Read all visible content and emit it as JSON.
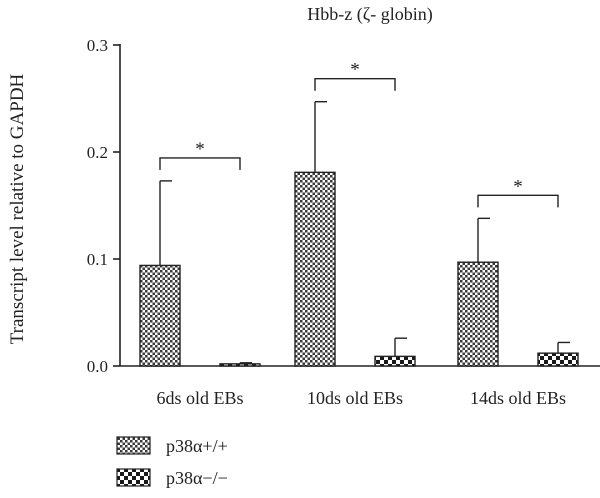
{
  "chart_data": {
    "type": "bar",
    "title": "Hbb-z (ζ- globin)",
    "ylabel": "Transcript level relative to GAPDH",
    "xlabel": "",
    "ylim": [
      0,
      0.3
    ],
    "yticks": [
      "0.0",
      "0.1",
      "0.2",
      "0.3"
    ],
    "categories": [
      "6ds old EBs",
      "10ds old EBs",
      "14ds old EBs"
    ],
    "series": [
      {
        "name": "p38α+/+",
        "values": [
          0.094,
          0.181,
          0.097
        ],
        "errors": [
          0.079,
          0.066,
          0.041
        ],
        "pattern": "fine-checker"
      },
      {
        "name": "p38α−/−",
        "values": [
          0.002,
          0.009,
          0.012
        ],
        "errors": [
          0.001,
          0.017,
          0.01
        ],
        "pattern": "coarse-checker"
      }
    ],
    "significance": [
      "*",
      "*",
      "*"
    ],
    "grid": false,
    "legend_position": "bottom-left"
  }
}
